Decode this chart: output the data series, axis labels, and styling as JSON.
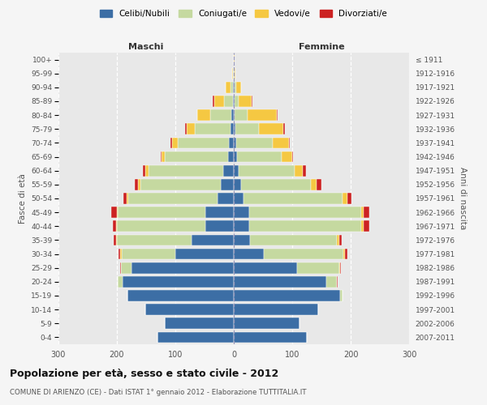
{
  "age_groups": [
    "0-4",
    "5-9",
    "10-14",
    "15-19",
    "20-24",
    "25-29",
    "30-34",
    "35-39",
    "40-44",
    "45-49",
    "50-54",
    "55-59",
    "60-64",
    "65-69",
    "70-74",
    "75-79",
    "80-84",
    "85-89",
    "90-94",
    "95-99",
    "100+"
  ],
  "birth_years": [
    "2007-2011",
    "2002-2006",
    "1997-2001",
    "1992-1996",
    "1987-1991",
    "1982-1986",
    "1977-1981",
    "1972-1976",
    "1967-1971",
    "1962-1966",
    "1957-1961",
    "1952-1956",
    "1947-1951",
    "1942-1946",
    "1937-1941",
    "1932-1936",
    "1927-1931",
    "1922-1926",
    "1917-1921",
    "1912-1916",
    "≤ 1911"
  ],
  "male": {
    "celibi": [
      130,
      118,
      152,
      182,
      190,
      175,
      100,
      72,
      48,
      48,
      28,
      22,
      18,
      10,
      8,
      5,
      4,
      2,
      1,
      0,
      0
    ],
    "coniugati": [
      0,
      0,
      0,
      0,
      8,
      18,
      92,
      128,
      152,
      150,
      152,
      138,
      128,
      108,
      88,
      62,
      36,
      14,
      5,
      1,
      0
    ],
    "vedovi": [
      0,
      0,
      0,
      0,
      0,
      0,
      2,
      2,
      2,
      2,
      4,
      4,
      5,
      5,
      10,
      14,
      22,
      18,
      8,
      2,
      0
    ],
    "divorziati": [
      0,
      0,
      0,
      0,
      0,
      2,
      3,
      3,
      5,
      10,
      5,
      5,
      5,
      2,
      2,
      2,
      0,
      2,
      0,
      0,
      0
    ]
  },
  "female": {
    "nubili": [
      125,
      112,
      145,
      182,
      158,
      108,
      52,
      28,
      26,
      26,
      16,
      12,
      8,
      6,
      4,
      3,
      2,
      1,
      1,
      0,
      0
    ],
    "coniugate": [
      0,
      0,
      0,
      4,
      18,
      72,
      135,
      148,
      192,
      192,
      170,
      120,
      96,
      76,
      62,
      40,
      22,
      8,
      3,
      1,
      0
    ],
    "vedove": [
      0,
      0,
      0,
      0,
      0,
      2,
      3,
      4,
      4,
      4,
      8,
      10,
      14,
      18,
      28,
      42,
      50,
      22,
      8,
      2,
      1
    ],
    "divorziate": [
      0,
      0,
      0,
      0,
      2,
      2,
      5,
      5,
      10,
      10,
      8,
      8,
      5,
      2,
      2,
      2,
      1,
      1,
      0,
      0,
      0
    ]
  },
  "colors": {
    "celibi": "#3c6ea5",
    "coniugati": "#c5d9a0",
    "vedovi": "#f5c842",
    "divorziati": "#cc2222"
  },
  "xlim": 300,
  "title": "Popolazione per età, sesso e stato civile - 2012",
  "subtitle": "COMUNE DI ARIENZO (CE) - Dati ISTAT 1° gennaio 2012 - Elaborazione TUTTITALIA.IT",
  "xlabel_left": "Maschi",
  "xlabel_right": "Femmine",
  "ylabel_left": "Fasce di età",
  "ylabel_right": "Anni di nascita",
  "bg_color": "#f5f5f5",
  "plot_bg": "#e8e8e8",
  "legend_labels": [
    "Celibi/Nubili",
    "Coniugati/e",
    "Vedovi/e",
    "Divorziati/e"
  ]
}
